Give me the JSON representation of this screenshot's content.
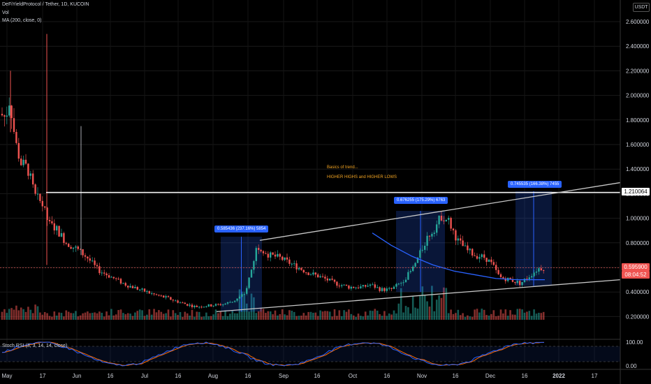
{
  "header": {
    "symbol_line": "DeFiYieldProtocol / Tether, 1D, KUCOIN",
    "vol_label": "Vol",
    "ma_label": "MA (200, close, 0)"
  },
  "currency": "USDT",
  "price_tags": {
    "resistance": "1.210064",
    "last_price": "0.595900",
    "countdown": "08:04:52"
  },
  "measurements": [
    "0.585436 (237.16%) 5854",
    "0.676255 (175.29%) 6763",
    "0.745535 (166.38%) 7455"
  ],
  "annotations": {
    "line1": "Basics of trend...",
    "line2": "HIGHER HIGHS and HIGHER LOWS"
  },
  "rsi": {
    "label": "Stoch RSI (3, 3, 14, 14, close)",
    "ticks": [
      "100.00",
      "0.00"
    ]
  },
  "colors": {
    "up": "#26a69a",
    "down": "#ef5350",
    "ma": "#2962ff",
    "rsi_k": "#2962ff",
    "rsi_d": "#ff6d00",
    "highlight": "#f5a623"
  },
  "chart_data": {
    "type": "candlestick",
    "y_ticks": [
      "2.600000",
      "2.400000",
      "2.200000",
      "2.000000",
      "1.800000",
      "1.600000",
      "1.400000",
      "1.200000",
      "1.000000",
      "0.800000",
      "0.600000",
      "0.400000",
      "0.200000"
    ],
    "x_ticks": [
      "May",
      "17",
      "Jun",
      "16",
      "Jul",
      "16",
      "Aug",
      "16",
      "Sep",
      "16",
      "Oct",
      "16",
      "Nov",
      "16",
      "Dec",
      "16",
      "2022",
      "17"
    ],
    "ylim": [
      0.05,
      2.62
    ],
    "resistance_level": 1.210064,
    "last_price": 0.5959,
    "channel_upper": [
      [
        0.81,
        1.29
      ]
    ],
    "channel_lower": [
      [
        0.24,
        0.5
      ]
    ]
  }
}
